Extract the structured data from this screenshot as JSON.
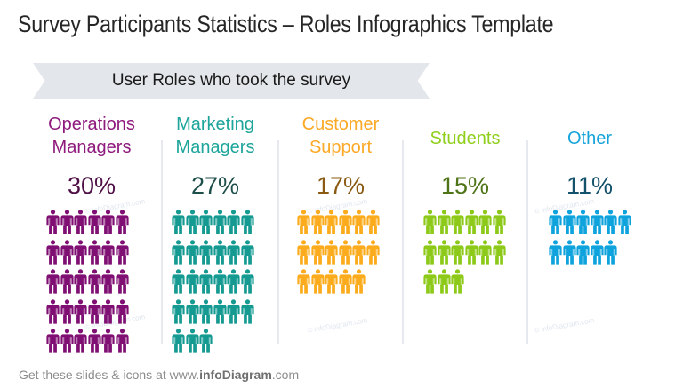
{
  "title": "Survey Participants Statistics – Roles Infographics Template",
  "banner": {
    "label": "User Roles who took the survey",
    "color": "#e3e6ea"
  },
  "roles": [
    {
      "label_line1": "Operations",
      "label_line2": "Managers",
      "percent": "30%",
      "count": 30,
      "label_color": "#8e1a7e",
      "percent_color": "#4f1046",
      "icon_color": "#7f0f72"
    },
    {
      "label_line1": "Marketing",
      "label_line2": "Managers",
      "percent": "27%",
      "count": 27,
      "label_color": "#1ea59b",
      "percent_color": "#1e4f4b",
      "icon_color": "#159a92"
    },
    {
      "label_line1": "Customer",
      "label_line2": "Support",
      "percent": "17%",
      "count": 17,
      "label_color": "#fba926",
      "percent_color": "#8a5a12",
      "icon_color": "#fbab1c"
    },
    {
      "label_line1": "Students",
      "label_line2": "",
      "percent": "15%",
      "count": 15,
      "label_color": "#8fcf1b",
      "percent_color": "#4e7417",
      "icon_color": "#8cc919"
    },
    {
      "label_line1": "Other",
      "label_line2": "",
      "percent": "11%",
      "count": 11,
      "label_color": "#16a4da",
      "percent_color": "#14516b",
      "icon_color": "#0ea3dc"
    }
  ],
  "watermark": "© infoDiagram.com",
  "footer": {
    "prefix": "Get these slides & icons at www.",
    "brand": "infoDiagram",
    "suffix": ".com"
  },
  "chart_data": {
    "type": "bar",
    "title": "Survey Participants Statistics – Roles Infographics Template",
    "subtitle": "User Roles who took the survey",
    "categories": [
      "Operations Managers",
      "Marketing Managers",
      "Customer Support",
      "Students",
      "Other"
    ],
    "values": [
      30,
      27,
      17,
      15,
      11
    ],
    "unit": "%",
    "representation": "pictogram (1 person icon = 1%)",
    "icons_per_row": 6,
    "xlabel": "",
    "ylabel": "",
    "colors": [
      "#7f0f72",
      "#159a92",
      "#fbab1c",
      "#8cc919",
      "#0ea3dc"
    ]
  }
}
